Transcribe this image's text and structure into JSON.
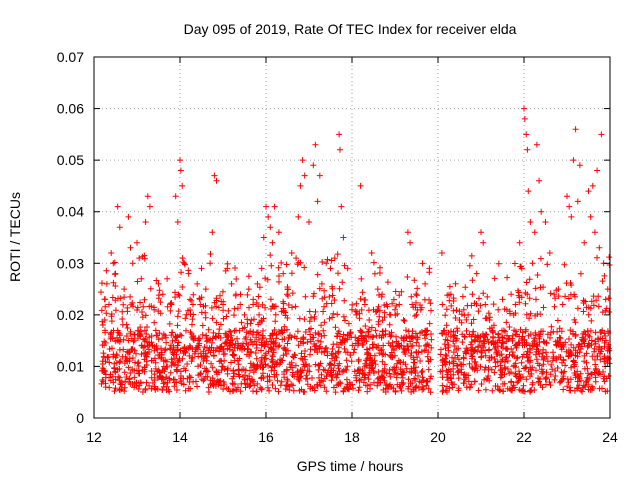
{
  "chart_data": {
    "type": "scatter",
    "title": "Day 095 of 2019, Rate Of TEC Index for receiver elda",
    "xlabel": "GPS time / hours",
    "ylabel": "ROTI / TECUs",
    "xlim": [
      12,
      24
    ],
    "ylim": [
      0,
      0.07
    ],
    "x_ticks": [
      "12",
      "14",
      "16",
      "18",
      "20",
      "22",
      "24"
    ],
    "x_tick_values": [
      12,
      14,
      16,
      18,
      20,
      22,
      24
    ],
    "y_ticks": [
      "0",
      "0.01",
      "0.02",
      "0.03",
      "0.04",
      "0.05",
      "0.06",
      "0.07"
    ],
    "y_tick_values": [
      0,
      0.01,
      0.02,
      0.03,
      0.04,
      0.05,
      0.06,
      0.07
    ],
    "grid": true,
    "marker": "+",
    "marker_color": "#ff0000",
    "data_gap_hours": [
      19.85,
      20.05
    ],
    "series": [
      {
        "name": "ROTI",
        "points": [
          [
            12.2,
            0.011
          ],
          [
            12.25,
            0.019
          ],
          [
            12.3,
            0.026
          ],
          [
            12.35,
            0.022
          ],
          [
            12.4,
            0.032
          ],
          [
            12.45,
            0.03
          ],
          [
            12.5,
            0.028
          ],
          [
            12.55,
            0.041
          ],
          [
            12.6,
            0.037
          ],
          [
            12.7,
            0.025
          ],
          [
            12.8,
            0.039
          ],
          [
            12.85,
            0.033
          ],
          [
            12.9,
            0.03
          ],
          [
            13.0,
            0.034
          ],
          [
            13.05,
            0.031
          ],
          [
            13.1,
            0.027
          ],
          [
            13.2,
            0.038
          ],
          [
            13.25,
            0.043
          ],
          [
            13.3,
            0.041
          ],
          [
            13.4,
            0.021
          ],
          [
            13.5,
            0.026
          ],
          [
            13.6,
            0.024
          ],
          [
            13.7,
            0.027
          ],
          [
            13.8,
            0.022
          ],
          [
            13.9,
            0.043
          ],
          [
            13.95,
            0.038
          ],
          [
            14.0,
            0.05
          ],
          [
            14.02,
            0.048
          ],
          [
            14.05,
            0.045
          ],
          [
            14.1,
            0.03
          ],
          [
            14.2,
            0.028
          ],
          [
            14.3,
            0.022
          ],
          [
            14.4,
            0.026
          ],
          [
            14.5,
            0.029
          ],
          [
            14.6,
            0.025
          ],
          [
            14.7,
            0.03
          ],
          [
            14.75,
            0.036
          ],
          [
            14.8,
            0.047
          ],
          [
            14.85,
            0.046
          ],
          [
            15.0,
            0.022
          ],
          [
            15.1,
            0.029
          ],
          [
            15.2,
            0.026
          ],
          [
            15.3,
            0.024
          ],
          [
            15.4,
            0.022
          ],
          [
            15.5,
            0.02
          ],
          [
            15.6,
            0.025
          ],
          [
            15.7,
            0.022
          ],
          [
            15.8,
            0.026
          ],
          [
            15.9,
            0.029
          ],
          [
            15.95,
            0.035
          ],
          [
            16.0,
            0.041
          ],
          [
            16.05,
            0.039
          ],
          [
            16.1,
            0.037
          ],
          [
            16.15,
            0.034
          ],
          [
            16.2,
            0.041
          ],
          [
            16.3,
            0.036
          ],
          [
            16.4,
            0.028
          ],
          [
            16.5,
            0.025
          ],
          [
            16.6,
            0.032
          ],
          [
            16.7,
            0.031
          ],
          [
            16.75,
            0.039
          ],
          [
            16.8,
            0.045
          ],
          [
            16.85,
            0.05
          ],
          [
            16.9,
            0.047
          ],
          [
            17.0,
            0.038
          ],
          [
            17.1,
            0.049
          ],
          [
            17.15,
            0.053
          ],
          [
            17.2,
            0.042
          ],
          [
            17.25,
            0.047
          ],
          [
            17.3,
            0.026
          ],
          [
            17.4,
            0.03
          ],
          [
            17.5,
            0.029
          ],
          [
            17.6,
            0.031
          ],
          [
            17.7,
            0.055
          ],
          [
            17.72,
            0.052
          ],
          [
            17.75,
            0.041
          ],
          [
            17.8,
            0.035
          ],
          [
            17.9,
            0.029
          ],
          [
            18.0,
            0.021
          ],
          [
            18.1,
            0.02
          ],
          [
            18.2,
            0.045
          ],
          [
            18.3,
            0.022
          ],
          [
            18.4,
            0.019
          ],
          [
            18.5,
            0.021
          ],
          [
            18.6,
            0.025
          ],
          [
            18.7,
            0.024
          ],
          [
            18.8,
            0.022
          ],
          [
            18.9,
            0.02
          ],
          [
            19.0,
            0.021
          ],
          [
            19.1,
            0.022
          ],
          [
            19.2,
            0.019
          ],
          [
            19.3,
            0.036
          ],
          [
            19.35,
            0.034
          ],
          [
            19.4,
            0.022
          ],
          [
            19.5,
            0.02
          ],
          [
            19.6,
            0.021
          ],
          [
            19.7,
            0.026
          ],
          [
            19.8,
            0.029
          ],
          [
            20.1,
            0.022
          ],
          [
            20.2,
            0.018
          ],
          [
            20.3,
            0.024
          ],
          [
            20.4,
            0.016
          ],
          [
            20.5,
            0.019
          ],
          [
            20.6,
            0.021
          ],
          [
            20.7,
            0.02
          ],
          [
            20.8,
            0.024
          ],
          [
            20.9,
            0.028
          ],
          [
            21.0,
            0.036
          ],
          [
            21.05,
            0.034
          ],
          [
            21.1,
            0.022
          ],
          [
            21.2,
            0.019
          ],
          [
            21.3,
            0.018
          ],
          [
            21.4,
            0.021
          ],
          [
            21.5,
            0.023
          ],
          [
            21.6,
            0.021
          ],
          [
            21.7,
            0.024
          ],
          [
            21.8,
            0.022
          ],
          [
            21.9,
            0.034
          ],
          [
            21.95,
            0.029
          ],
          [
            22.0,
            0.06
          ],
          [
            22.02,
            0.058
          ],
          [
            22.05,
            0.055
          ],
          [
            22.08,
            0.052
          ],
          [
            22.1,
            0.044
          ],
          [
            22.15,
            0.038
          ],
          [
            22.2,
            0.03
          ],
          [
            22.25,
            0.036
          ],
          [
            22.3,
            0.053
          ],
          [
            22.35,
            0.046
          ],
          [
            22.4,
            0.04
          ],
          [
            22.5,
            0.038
          ],
          [
            22.6,
            0.032
          ],
          [
            22.7,
            0.024
          ],
          [
            22.8,
            0.025
          ],
          [
            22.9,
            0.022
          ],
          [
            23.0,
            0.043
          ],
          [
            23.05,
            0.041
          ],
          [
            23.1,
            0.039
          ],
          [
            23.15,
            0.05
          ],
          [
            23.2,
            0.056
          ],
          [
            23.25,
            0.042
          ],
          [
            23.3,
            0.049
          ],
          [
            23.4,
            0.034
          ],
          [
            23.5,
            0.044
          ],
          [
            23.55,
            0.039
          ],
          [
            23.6,
            0.045
          ],
          [
            23.65,
            0.036
          ],
          [
            23.7,
            0.048
          ],
          [
            23.75,
            0.033
          ],
          [
            23.8,
            0.055
          ],
          [
            23.85,
            0.03
          ],
          [
            23.9,
            0.023
          ],
          [
            23.95,
            0.025
          ]
        ]
      }
    ]
  }
}
